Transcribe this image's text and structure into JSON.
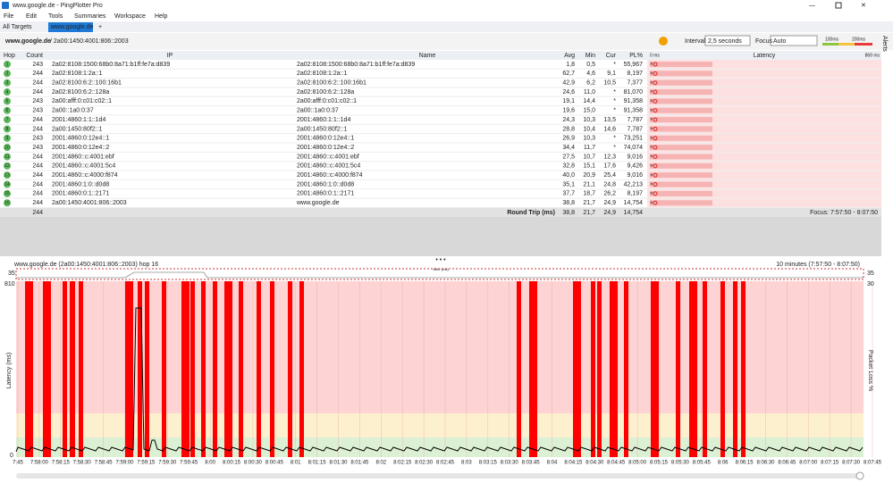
{
  "window": {
    "title": "www.google.de - PingPlotter Pro"
  },
  "menu": [
    "File",
    "Edit",
    "Tools",
    "Summaries",
    "Workspace",
    "Help"
  ],
  "tabs": [
    "All Targets",
    "www.google.de",
    "+"
  ],
  "toolbar": {
    "target": "www.google.de",
    "path": "/ 2a00:1450:4001:806::2003",
    "interval_label": "Interval",
    "interval": "2,5 seconds",
    "focus_label": "Focus",
    "focus": "Auto",
    "legend_100": "100ms",
    "legend_200": "200ms",
    "alerts": "Alerts"
  },
  "table": {
    "headers": [
      "Hop",
      "Count",
      "IP",
      "Name",
      "Avg",
      "Min",
      "Cur",
      "PL%",
      "Latency"
    ],
    "latency_min": "0 ms",
    "latency_max": "869 ms",
    "rows": [
      [
        "1",
        "243",
        "2a02:8108:1500:68b0:8a71:b1ff:fe7a:d839",
        "2a02:8108:1500:68b0:8a71:b1ff:fe7a:d839",
        "1,8",
        "0,5",
        "*",
        "55,967"
      ],
      [
        "2",
        "244",
        "2a02:8108:1:2a::1",
        "2a02:8108:1:2a::1",
        "62,7",
        "4,6",
        "9,1",
        "8,197"
      ],
      [
        "3",
        "244",
        "2a02:8100:6:2::100:16b1",
        "2a02:8100:6:2::100:16b1",
        "42,9",
        "6,2",
        "10,5",
        "7,377"
      ],
      [
        "4",
        "244",
        "2a02:8100:6:2::128a",
        "2a02:8100:6:2::128a",
        "24,6",
        "11,0",
        "*",
        "81,070"
      ],
      [
        "5",
        "243",
        "2a00:afff:0:c01:c02::1",
        "2a00:afff:0:c01:c02::1",
        "19,1",
        "14,4",
        "*",
        "91,358"
      ],
      [
        "6",
        "243",
        "2a00::1a0:0:37",
        "2a00::1a0:0:37",
        "19,6",
        "15,0",
        "*",
        "91,358"
      ],
      [
        "7",
        "244",
        "2001:4860:1:1::1d4",
        "2001:4860:1:1::1d4",
        "24,3",
        "10,3",
        "13,5",
        "7,787"
      ],
      [
        "8",
        "244",
        "2a00:1450:80f2::1",
        "2a00:1450:80f2::1",
        "28,8",
        "10,4",
        "14,6",
        "7,787"
      ],
      [
        "9",
        "243",
        "2001:4860:0:12e4::1",
        "2001:4860:0:12e4::1",
        "26,9",
        "10,3",
        "*",
        "73,251"
      ],
      [
        "10",
        "243",
        "2001:4860:0:12e4::2",
        "2001:4860:0:12e4::2",
        "34,4",
        "11,7",
        "*",
        "74,074"
      ],
      [
        "11",
        "244",
        "2001:4860::c:4001:ebf",
        "2001:4860::c:4001:ebf",
        "27,5",
        "10,7",
        "12,3",
        "9,016"
      ],
      [
        "12",
        "244",
        "2001:4860::c:4001:5c4",
        "2001:4860::c:4001:5c4",
        "32,8",
        "15,1",
        "17,6",
        "9,426"
      ],
      [
        "13",
        "244",
        "2001:4860::c:4000:f874",
        "2001:4860::c:4000:f874",
        "40,0",
        "20,9",
        "25,4",
        "9,016"
      ],
      [
        "14",
        "244",
        "2001:4860:1:0::d0d8",
        "2001:4860:1:0::d0d8",
        "35,1",
        "21,1",
        "24,8",
        "42,213"
      ],
      [
        "15",
        "244",
        "2001:4860:0:1::2171",
        "2001:4860:0:1::2171",
        "37,7",
        "18,7",
        "26,2",
        "8,197"
      ],
      [
        "16",
        "244",
        "2a00:1450:4001:806::2003",
        "www.google.de",
        "38,8",
        "21,7",
        "24,9",
        "14,754"
      ]
    ],
    "summary": {
      "count": "244",
      "label": "Round Trip (ms)",
      "avg": "38,8",
      "min": "21,7",
      "cur": "24,9",
      "pl": "14,754",
      "focus": "Focus: 7:57:50 - 8:07:50"
    }
  },
  "graph": {
    "title": "www.google.de (2a00:1450:4001:806::2003) hop 16",
    "range": "10 minutes (7:57:50 - 8:07:50)",
    "jitter_label": "Jitter (ms)",
    "jitter_left": "35",
    "jitter_right": "35",
    "y_top": "810",
    "y_bottom": "0",
    "loss_top": "30",
    "y_label": "Latency (ms)",
    "loss_label": "Packet Loss %",
    "xticks": [
      "7:45",
      "7:58:00",
      "7:58:15",
      "7:58:30",
      "7:58:45",
      "7:59:00",
      "7:59:15",
      "7:59:30",
      "7:59:45",
      "8:00",
      "8:00:15",
      "8:00:30",
      "8:00:45",
      "8:01",
      "8:01:15",
      "8:01:30",
      "8:01:45",
      "8:02",
      "8:02:15",
      "8:02:30",
      "8:02:45",
      "8:03",
      "8:03:15",
      "8:03:30",
      "8:03:45",
      "8:04",
      "8:04:15",
      "8:04:30",
      "8:04:45",
      "8:05:00",
      "8:05:15",
      "8:05:30",
      "8:05:45",
      "8:06",
      "8:06:15",
      "8:06:30",
      "8:06:45",
      "8:07:00",
      "8:07:15",
      "8:07:30",
      "8:07:45"
    ]
  }
}
